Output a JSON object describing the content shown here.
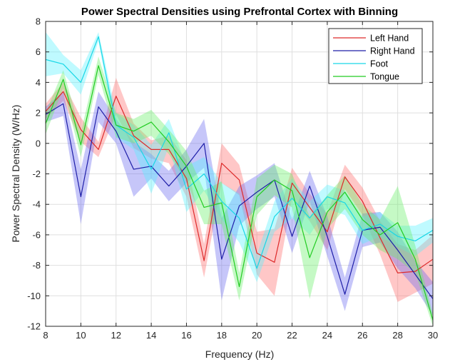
{
  "chart_data": {
    "type": "line",
    "title": "Power Spectral Densities using Prefrontal Cortex with Binning",
    "xlabel": "Frequency (Hz)",
    "ylabel": "Power Spectral Density (W/Hz)",
    "xlim": [
      8,
      30
    ],
    "ylim": [
      -12,
      8
    ],
    "xticks": [
      8,
      10,
      12,
      14,
      16,
      18,
      20,
      22,
      24,
      26,
      28,
      30
    ],
    "yticks": [
      -12,
      -10,
      -8,
      -6,
      -4,
      -2,
      0,
      2,
      4,
      6,
      8
    ],
    "grid": true,
    "legend_position": "top-right",
    "x": [
      8,
      9,
      10,
      11,
      12,
      13,
      14,
      15,
      16,
      17,
      18,
      19,
      20,
      21,
      22,
      23,
      24,
      25,
      26,
      27,
      28,
      29,
      30
    ],
    "series": [
      {
        "name": "Left Hand",
        "color": "#dd2a2a",
        "fill": "#ff6b6b",
        "values": [
          2.1,
          3.4,
          0.9,
          -0.4,
          3.1,
          0.5,
          -0.4,
          -0.4,
          -2.3,
          -7.7,
          -1.3,
          -2.4,
          -7.2,
          -7.8,
          -2.6,
          -4.2,
          -5.8,
          -2.2,
          -3.8,
          -6.2,
          -8.5,
          -8.4,
          -7.6
        ],
        "lower": [
          1.6,
          2.8,
          0.1,
          -0.9,
          1.9,
          -0.3,
          -1.0,
          -1.3,
          -3.5,
          -8.8,
          -2.6,
          -3.4,
          -8.6,
          -10.0,
          -3.6,
          -5.1,
          -7.0,
          -3.0,
          -4.7,
          -7.3,
          -10.4,
          -9.8,
          -9.2
        ],
        "upper": [
          2.6,
          4.0,
          1.7,
          0.1,
          4.3,
          1.3,
          0.2,
          0.5,
          -1.1,
          -6.6,
          0.0,
          -1.4,
          -5.8,
          -5.6,
          -1.6,
          -3.3,
          -4.6,
          -1.4,
          -2.9,
          -5.1,
          -6.6,
          -7.0,
          -6.0
        ]
      },
      {
        "name": "Right Hand",
        "color": "#1e1ea8",
        "fill": "#6a6aee",
        "values": [
          1.9,
          2.6,
          -3.5,
          2.4,
          0.8,
          -1.7,
          -1.5,
          -2.8,
          -1.5,
          0.0,
          -7.6,
          -4.1,
          -3.2,
          -2.4,
          -6.1,
          -2.8,
          -6.1,
          -9.9,
          -5.7,
          -5.5,
          -7.0,
          -8.6,
          -10.2
        ],
        "lower": [
          1.4,
          1.8,
          -5.3,
          1.4,
          0.0,
          -3.5,
          -2.3,
          -3.8,
          -2.6,
          -1.6,
          -10.3,
          -5.4,
          -4.3,
          -3.5,
          -7.2,
          -3.8,
          -7.4,
          -11.0,
          -6.8,
          -6.5,
          -8.2,
          -9.5,
          -11.3
        ],
        "upper": [
          2.4,
          3.4,
          -1.7,
          3.4,
          1.6,
          0.1,
          -0.7,
          -1.8,
          -0.4,
          1.6,
          -4.9,
          -2.8,
          -2.1,
          -1.3,
          -5.0,
          -1.8,
          -4.8,
          -8.8,
          -4.6,
          -4.5,
          -5.8,
          -7.7,
          -9.1
        ]
      },
      {
        "name": "Foot",
        "color": "#19d7e6",
        "fill": "#56f3ff",
        "values": [
          5.5,
          5.2,
          4.0,
          7.0,
          1.2,
          0.4,
          -1.7,
          0.7,
          -3.0,
          -2.0,
          -3.8,
          -4.9,
          -8.2,
          -4.8,
          -3.6,
          -4.9,
          -3.5,
          -3.9,
          -5.7,
          -5.3,
          -6.1,
          -6.4,
          -5.7
        ],
        "lower": [
          4.4,
          4.6,
          3.2,
          6.7,
          0.4,
          -0.4,
          -3.3,
          -0.2,
          -4.5,
          -3.1,
          -5.0,
          -6.5,
          -9.1,
          -5.8,
          -4.9,
          -6.0,
          -4.3,
          -4.7,
          -6.6,
          -6.1,
          -6.8,
          -7.4,
          -6.5
        ],
        "upper": [
          7.3,
          5.8,
          4.8,
          7.3,
          2.0,
          1.2,
          -0.1,
          1.6,
          -1.5,
          -0.9,
          -2.6,
          -3.3,
          -7.3,
          -3.8,
          -2.3,
          -3.8,
          -2.7,
          -3.1,
          -4.8,
          -4.5,
          -5.4,
          -5.4,
          -4.9
        ]
      },
      {
        "name": "Tongue",
        "color": "#22cc22",
        "fill": "#66ee66",
        "values": [
          1.3,
          4.2,
          -0.1,
          5.1,
          1.2,
          0.8,
          1.4,
          0.1,
          -1.5,
          -4.2,
          -3.9,
          -9.4,
          -3.5,
          -2.4,
          -3.1,
          -7.5,
          -4.5,
          -3.2,
          -5.0,
          -6.0,
          -5.2,
          -7.6,
          -11.6
        ],
        "lower": [
          0.6,
          3.6,
          -0.9,
          4.5,
          0.4,
          0.0,
          0.5,
          -0.7,
          -2.5,
          -5.3,
          -5.3,
          -10.3,
          -4.7,
          -3.4,
          -4.2,
          -10.2,
          -5.6,
          -4.3,
          -6.0,
          -7.0,
          -7.6,
          -8.5,
          -12.0
        ],
        "upper": [
          2.0,
          4.8,
          0.7,
          5.7,
          2.0,
          1.6,
          2.2,
          0.9,
          -0.5,
          -3.1,
          -2.5,
          -8.5,
          -2.3,
          -1.4,
          -2.0,
          -4.8,
          -3.4,
          -2.1,
          -4.0,
          -5.0,
          -2.8,
          -6.7,
          -11.2
        ]
      }
    ]
  }
}
